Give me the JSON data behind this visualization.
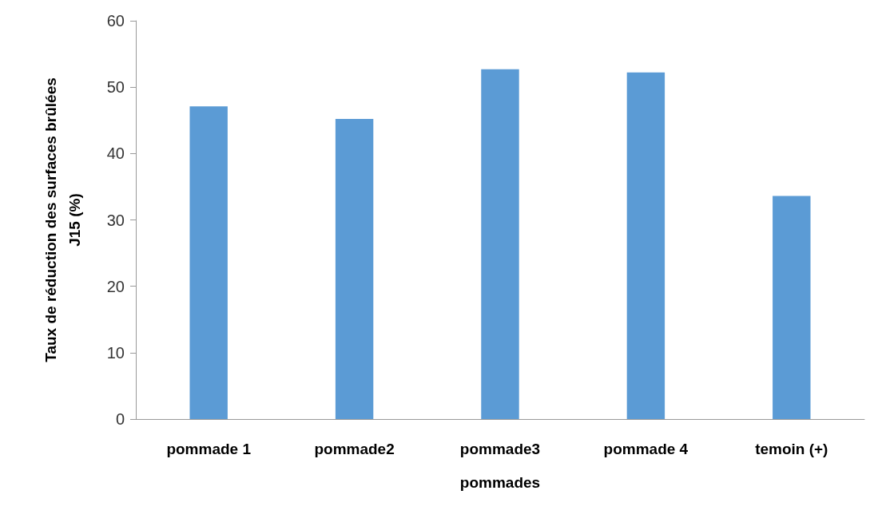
{
  "chart_data": {
    "type": "bar",
    "xlabel": "pommades",
    "ylabel": "Taux de réduction des surfaces brûlées\nJ15 (%)",
    "categories": [
      "pommade 1",
      "pommade2",
      "pommade3",
      "pommade 4",
      "temoin (+)"
    ],
    "values": [
      47.1,
      45.2,
      52.7,
      52.2,
      33.6
    ],
    "color": "#5b9bd5",
    "ylim": [
      0,
      60
    ],
    "yticks": [
      0,
      10,
      20,
      30,
      40,
      50,
      60
    ],
    "grid": false
  }
}
